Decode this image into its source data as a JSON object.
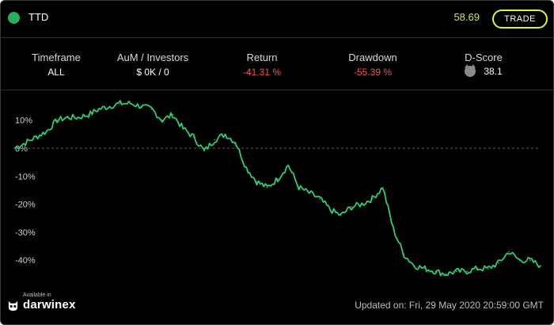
{
  "header": {
    "ticker": "TTD",
    "price": "58.69",
    "trade_label": "TRADE",
    "colors": {
      "status_dot": "#27ae60",
      "price": "#c6e84f",
      "button_border": "#d4f54a"
    }
  },
  "stats": [
    {
      "label": "Timeframe",
      "value": "ALL",
      "color": "#ffffff"
    },
    {
      "label": "AuM / Investors",
      "value": "$ 0K / 0",
      "color": "#ffffff"
    },
    {
      "label": "Return",
      "value": "-41.31 %",
      "color": "#ff4c4c"
    },
    {
      "label": "Drawdown",
      "value": "-55.39 %",
      "color": "#ff4c4c"
    }
  ],
  "dscore": {
    "label": "D-Score",
    "value": "38.1",
    "icon": "owl-icon"
  },
  "chart_data": {
    "type": "line",
    "line_color": "#2ecc71",
    "y_ticks": [
      "10%",
      "0%",
      "-10%",
      "-20%",
      "-30%",
      "-40%"
    ],
    "y_tick_values": [
      10,
      0,
      -10,
      -20,
      -30,
      -40
    ],
    "ylim": [
      -50,
      17
    ],
    "zero_line": "dashed",
    "x": [
      0,
      4,
      6,
      8,
      10,
      12,
      14,
      16,
      18,
      20,
      22,
      24,
      26,
      28,
      30,
      32,
      34,
      36,
      38,
      40,
      42,
      44,
      46,
      48,
      50,
      52,
      54,
      56,
      58,
      60,
      62,
      64,
      66,
      68,
      70,
      72,
      74,
      76,
      78,
      80,
      82,
      84,
      86,
      88,
      90,
      92,
      94,
      96,
      98,
      100
    ],
    "values": [
      0,
      4,
      6,
      10,
      11,
      11,
      12,
      14,
      15,
      16,
      16,
      15,
      14,
      10,
      12,
      7,
      4,
      -1,
      3,
      5,
      2,
      -7,
      -12,
      -14,
      -11,
      -6,
      -14,
      -16,
      -18,
      -22,
      -24,
      -21,
      -20,
      -18,
      -14,
      -29,
      -38,
      -42,
      -43,
      -44,
      -45,
      -44,
      -44,
      -43,
      -43,
      -41,
      -37,
      -40,
      -40,
      -42
    ]
  },
  "footer": {
    "available_in": "Available in",
    "brand": "darwinex",
    "updated": "Updated on: Fri, 29 May 2020 20:59:00 GMT"
  }
}
